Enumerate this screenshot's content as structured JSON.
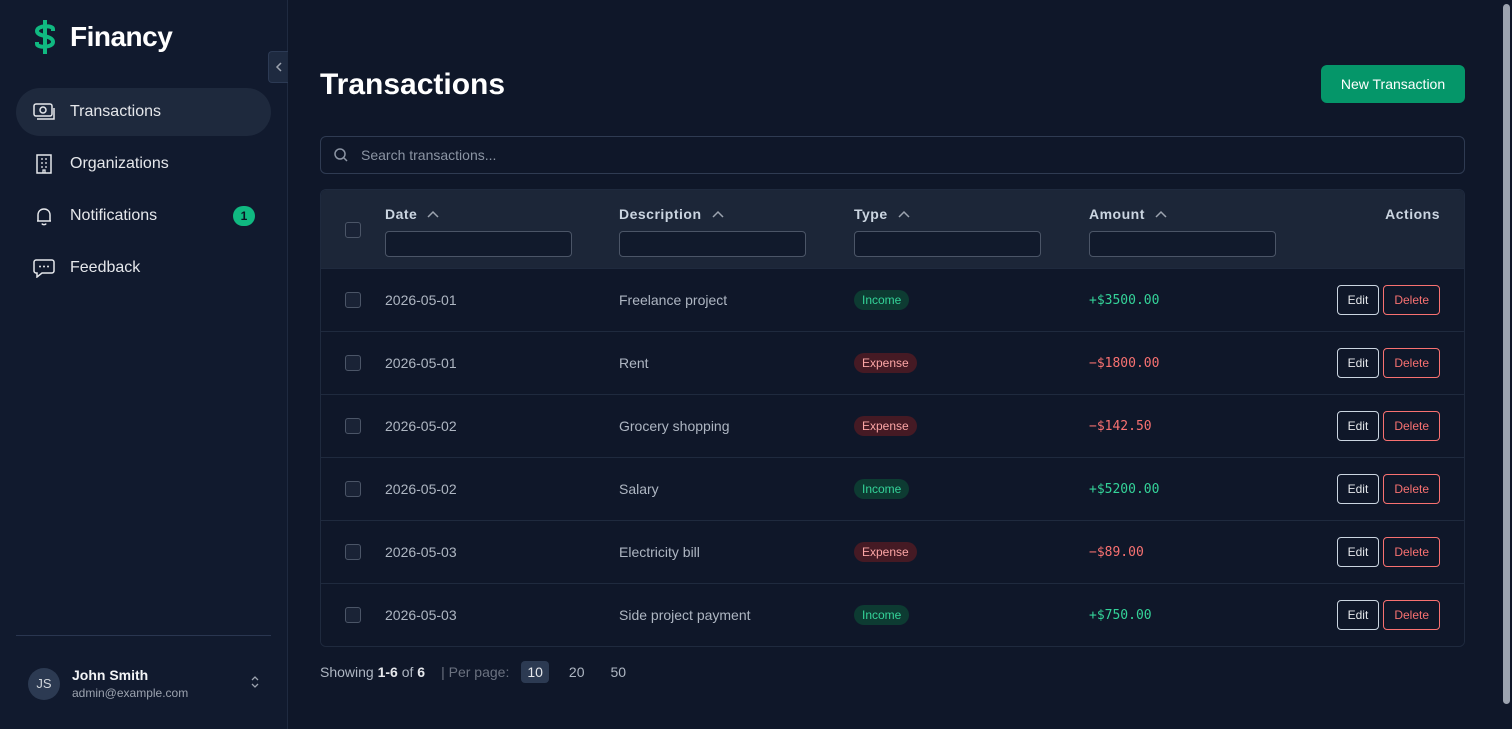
{
  "brand": {
    "name": "Financy",
    "logo_icon": "dollar-sign-icon",
    "color": "#10b981"
  },
  "sidebar": {
    "items": [
      {
        "label": "Transactions",
        "icon": "banknote-icon",
        "active": true
      },
      {
        "label": "Organizations",
        "icon": "building-icon",
        "active": false
      },
      {
        "label": "Notifications",
        "icon": "bell-icon",
        "active": false,
        "badge": "1"
      },
      {
        "label": "Feedback",
        "icon": "message-icon",
        "active": false
      }
    ],
    "user": {
      "initials": "JS",
      "name": "John Smith",
      "email": "admin@example.com"
    }
  },
  "main": {
    "title": "Transactions",
    "new_button": "New Transaction",
    "search_placeholder": "Search transactions...",
    "columns": {
      "date": "Date",
      "description": "Description",
      "type": "Type",
      "amount": "Amount",
      "actions": "Actions"
    },
    "actions": {
      "edit": "Edit",
      "delete": "Delete"
    },
    "rows": [
      {
        "date": "2026-05-01",
        "description": "Freelance project",
        "type": "Income",
        "amount": "+$3500.00",
        "kind": "income"
      },
      {
        "date": "2026-05-01",
        "description": "Rent",
        "type": "Expense",
        "amount": "−$1800.00",
        "kind": "expense"
      },
      {
        "date": "2026-05-02",
        "description": "Grocery shopping",
        "type": "Expense",
        "amount": "−$142.50",
        "kind": "expense"
      },
      {
        "date": "2026-05-02",
        "description": "Salary",
        "type": "Income",
        "amount": "+$5200.00",
        "kind": "income"
      },
      {
        "date": "2026-05-03",
        "description": "Electricity bill",
        "type": "Expense",
        "amount": "−$89.00",
        "kind": "expense"
      },
      {
        "date": "2026-05-03",
        "description": "Side project payment",
        "type": "Income",
        "amount": "+$750.00",
        "kind": "income"
      }
    ],
    "pagination": {
      "showing_label": "Showing",
      "range": "1-6",
      "of_label": "of",
      "total": "6",
      "per_page_label": "| Per page:",
      "options": [
        "10",
        "20",
        "50"
      ],
      "selected": "10"
    }
  }
}
